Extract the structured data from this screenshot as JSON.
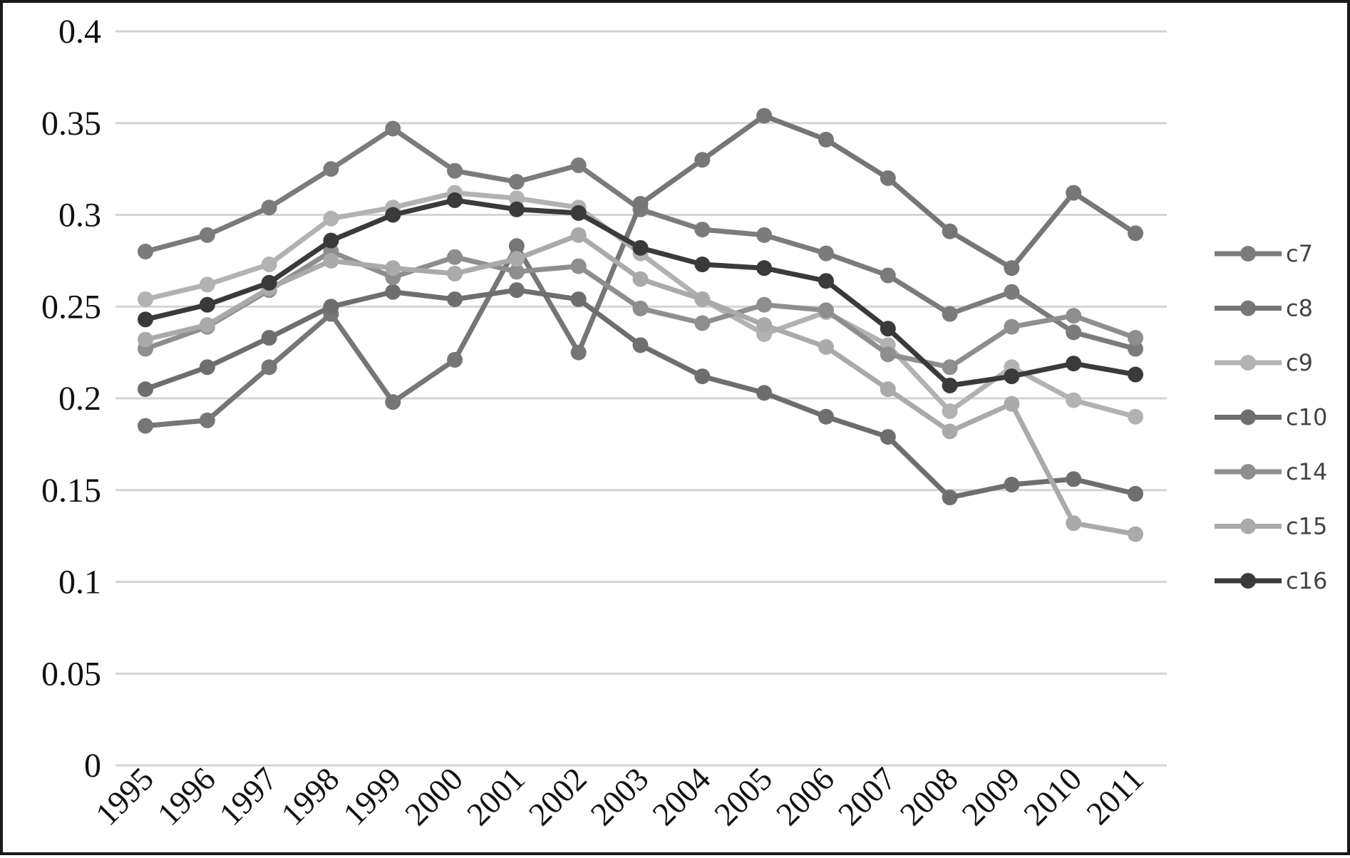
{
  "chart_data": {
    "type": "line",
    "categories": [
      "1995",
      "1996",
      "1997",
      "1998",
      "1999",
      "2000",
      "2001",
      "2002",
      "2003",
      "2004",
      "2005",
      "2006",
      "2007",
      "2008",
      "2009",
      "2010",
      "2011"
    ],
    "ylim": [
      0,
      0.4
    ],
    "yticks": [
      {
        "value": 0,
        "label": "0"
      },
      {
        "value": 0.05,
        "label": "0.05"
      },
      {
        "value": 0.1,
        "label": "0.1"
      },
      {
        "value": 0.15,
        "label": "0.15"
      },
      {
        "value": 0.2,
        "label": "0.2"
      },
      {
        "value": 0.25,
        "label": "0.25"
      },
      {
        "value": 0.3,
        "label": "0.3"
      },
      {
        "value": 0.35,
        "label": "0.35"
      },
      {
        "value": 0.4,
        "label": "0.4"
      }
    ],
    "grid": true,
    "legend": "right",
    "series": [
      {
        "name": "c7",
        "color": "#7b7b7b",
        "values": [
          0.28,
          0.289,
          0.304,
          0.325,
          0.347,
          0.324,
          0.318,
          0.327,
          0.303,
          0.292,
          0.289,
          0.279,
          0.267,
          0.246,
          0.258,
          0.236,
          0.227
        ]
      },
      {
        "name": "c8",
        "color": "#767676",
        "values": [
          0.185,
          0.188,
          0.217,
          0.246,
          0.198,
          0.221,
          0.283,
          0.225,
          0.306,
          0.33,
          0.354,
          0.341,
          0.32,
          0.291,
          0.271,
          0.312,
          0.29
        ]
      },
      {
        "name": "c9",
        "color": "#b2b2b2",
        "values": [
          0.254,
          0.262,
          0.273,
          0.298,
          0.304,
          0.312,
          0.309,
          0.304,
          0.279,
          0.254,
          0.235,
          0.247,
          0.229,
          0.193,
          0.217,
          0.199,
          0.19
        ]
      },
      {
        "name": "c10",
        "color": "#6e6e6e",
        "values": [
          0.205,
          0.217,
          0.233,
          0.25,
          0.258,
          0.254,
          0.259,
          0.254,
          0.229,
          0.212,
          0.203,
          0.19,
          0.179,
          0.146,
          0.153,
          0.156,
          0.148
        ]
      },
      {
        "name": "c14",
        "color": "#8e8e8e",
        "values": [
          0.227,
          0.239,
          0.259,
          0.28,
          0.266,
          0.277,
          0.269,
          0.272,
          0.249,
          0.241,
          0.251,
          0.248,
          0.224,
          0.217,
          0.239,
          0.245,
          0.233
        ]
      },
      {
        "name": "c15",
        "color": "#aaaaaa",
        "values": [
          0.232,
          0.24,
          0.26,
          0.275,
          0.271,
          0.268,
          0.276,
          0.289,
          0.265,
          0.254,
          0.24,
          0.228,
          0.205,
          0.182,
          0.197,
          0.132,
          0.126
        ]
      },
      {
        "name": "c16",
        "color": "#3a3a3a",
        "values": [
          0.243,
          0.251,
          0.263,
          0.286,
          0.3,
          0.308,
          0.303,
          0.301,
          0.282,
          0.273,
          0.271,
          0.264,
          0.238,
          0.207,
          0.212,
          0.219,
          0.213
        ]
      }
    ]
  }
}
